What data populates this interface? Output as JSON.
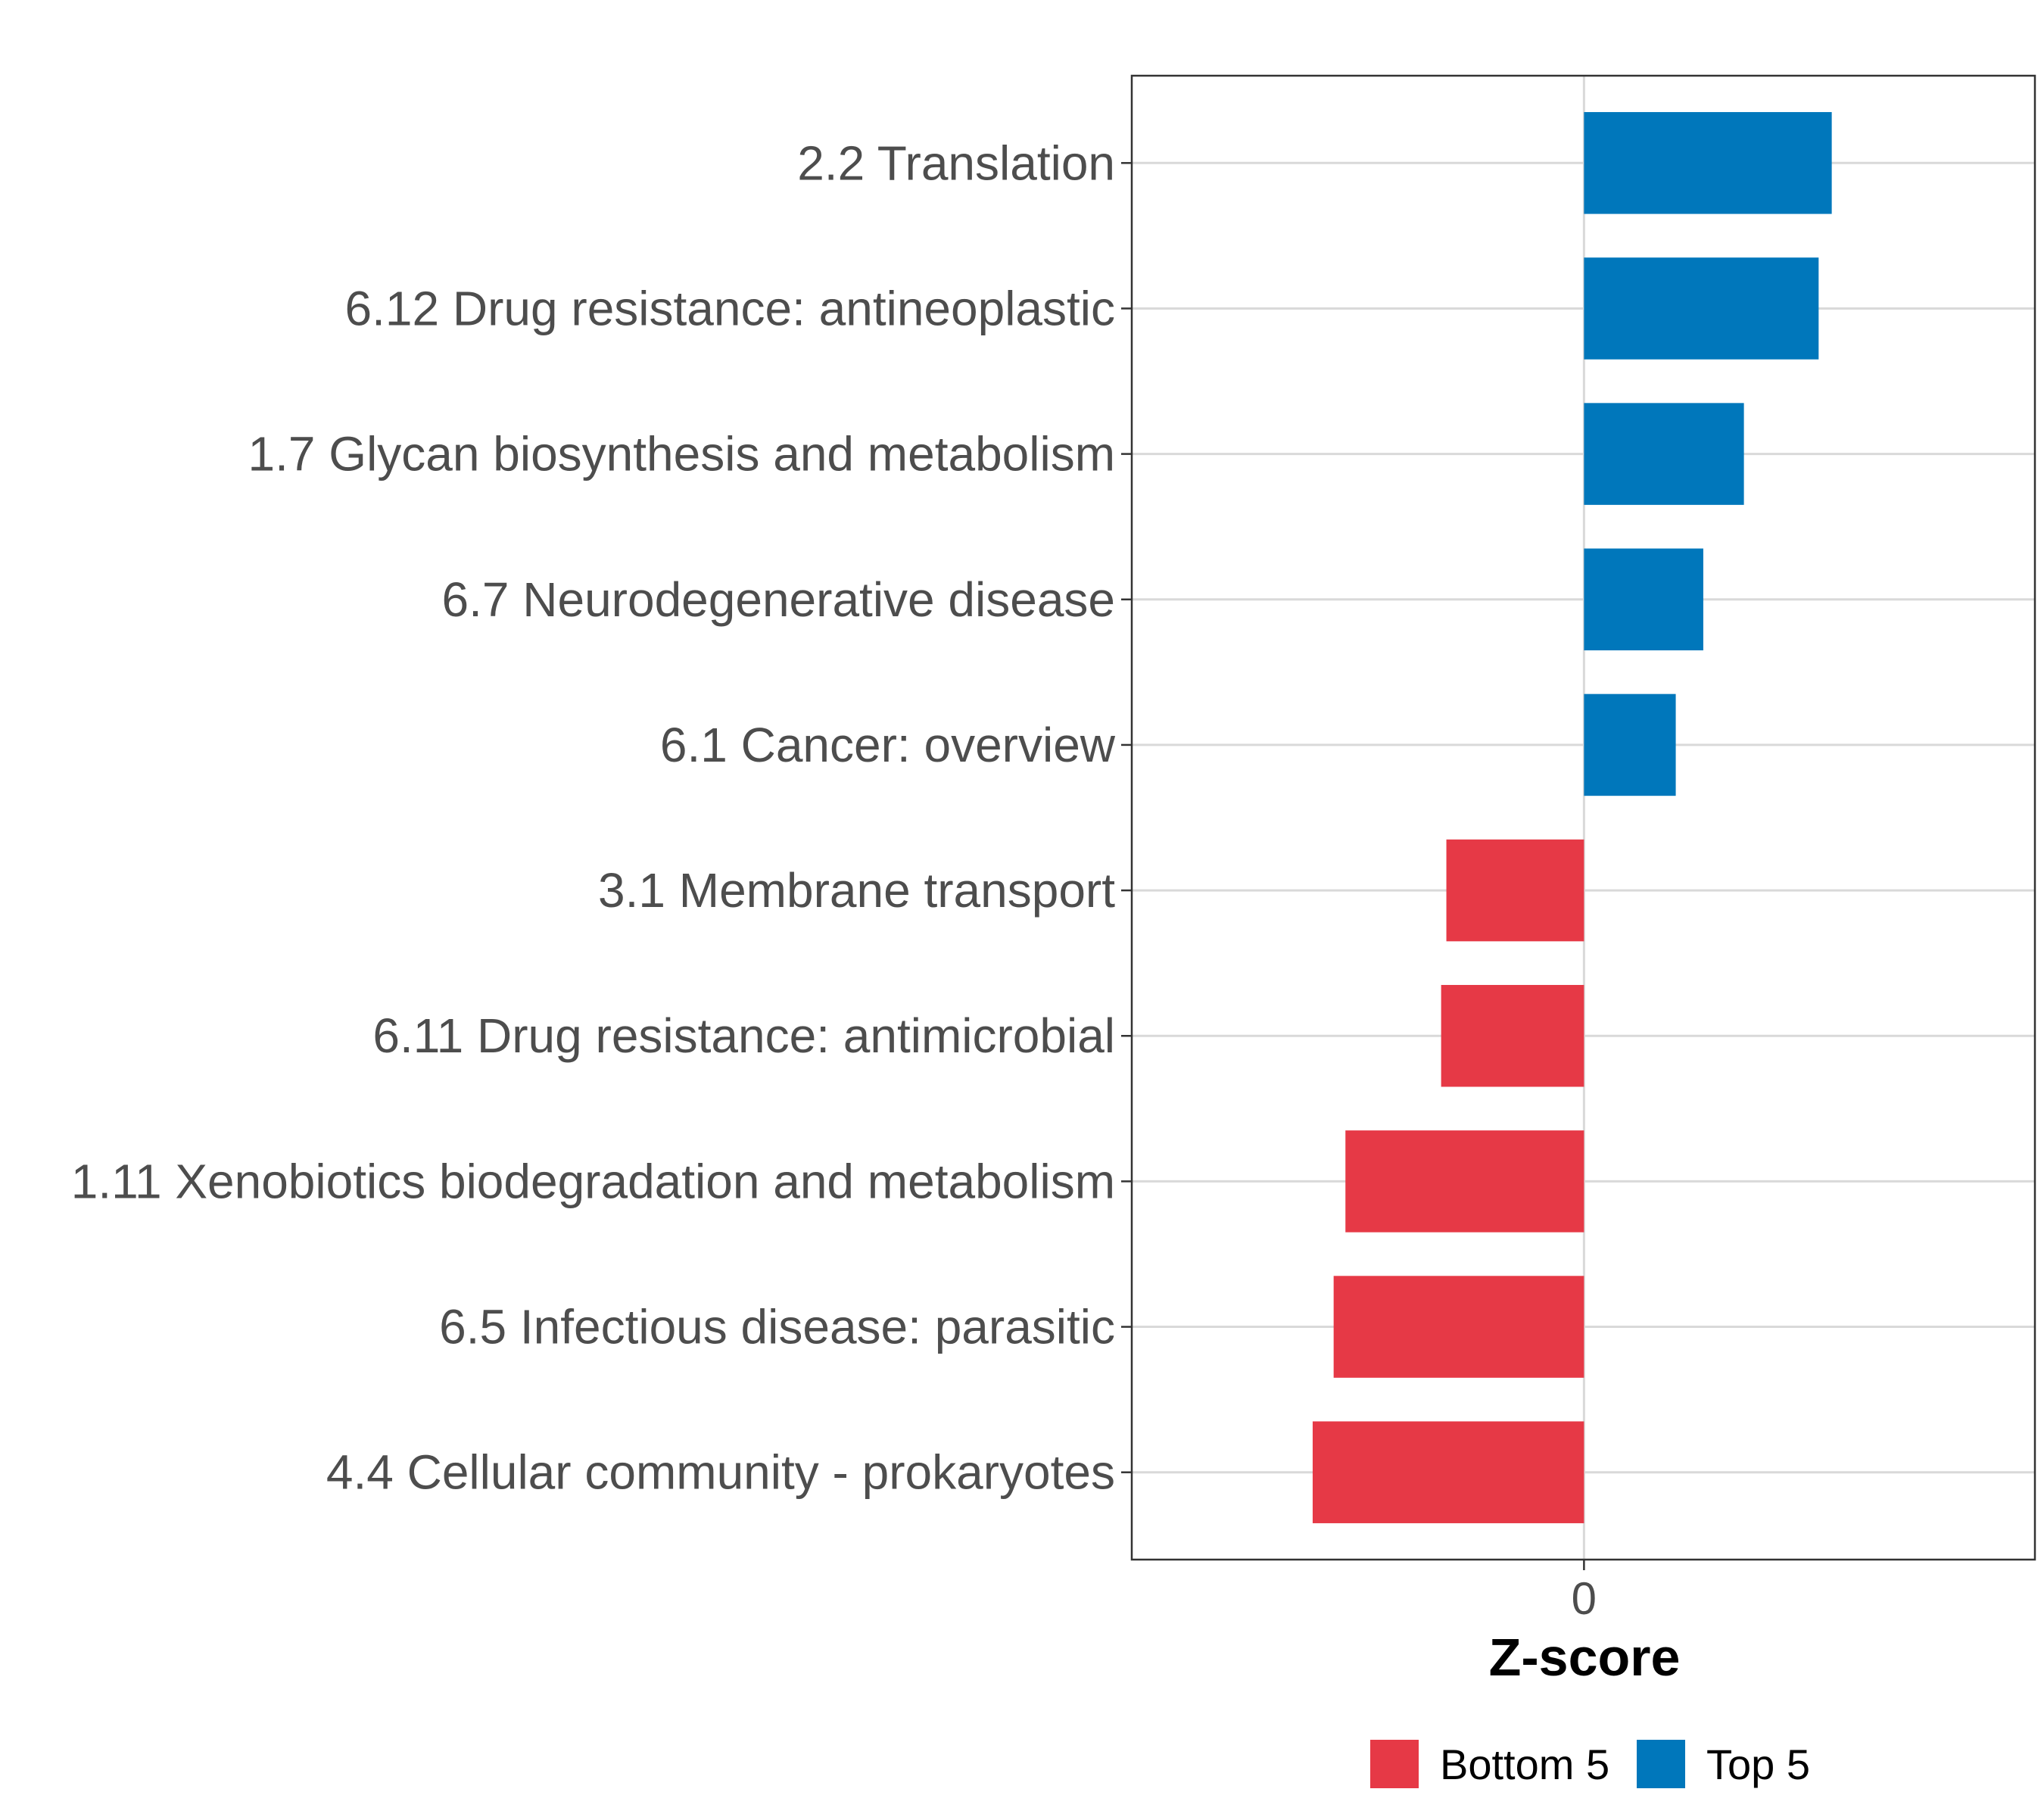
{
  "chart_data": {
    "type": "bar",
    "orientation": "horizontal",
    "title": "",
    "xlabel": "Z-score",
    "ylabel": "",
    "xlim": [
      -3.45,
      3.44
    ],
    "x_ticks": [
      {
        "value": 0,
        "label": "0"
      }
    ],
    "grid": "horizontal major gridlines + vertical line at 0",
    "categories": [
      "2.2 Translation",
      "6.12 Drug resistance: antineoplastic",
      "1.7 Glycan biosynthesis and metabolism",
      "6.7 Neurodegenerative disease",
      "6.1 Cancer: overview",
      "3.1 Membrane transport",
      "6.11 Drug resistance: antimicrobial",
      "1.11 Xenobiotics biodegradation and metabolism",
      "6.5 Infectious disease: parasitic",
      "4.4 Cellular community - prokaryotes"
    ],
    "values": [
      1.89,
      1.79,
      1.22,
      0.91,
      0.7,
      -1.05,
      -1.09,
      -1.82,
      -1.91,
      -2.07
    ],
    "groups": [
      "Top 5",
      "Top 5",
      "Top 5",
      "Top 5",
      "Top 5",
      "Bottom 5",
      "Bottom 5",
      "Bottom 5",
      "Bottom 5",
      "Bottom 5"
    ],
    "legend": {
      "placement": "bottom",
      "entries": [
        {
          "label": "Bottom 5",
          "color": "#E63946"
        },
        {
          "label": "Top 5",
          "color": "#0077BB"
        }
      ]
    }
  }
}
